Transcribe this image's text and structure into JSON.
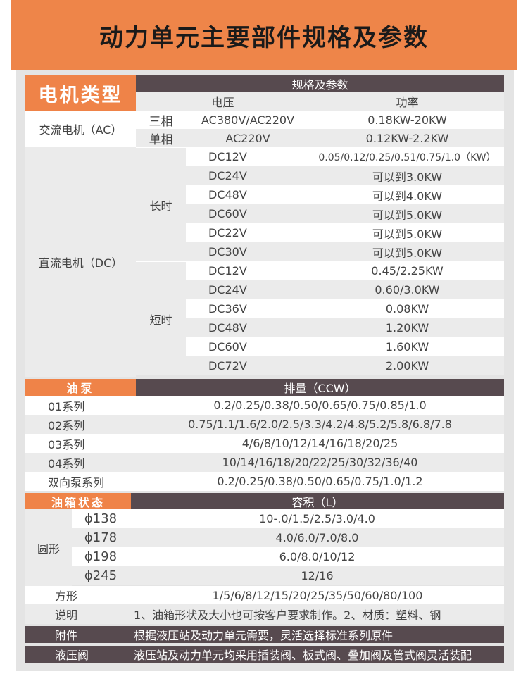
{
  "title": "动力单元主要部件规格及参数",
  "motor": {
    "header": "电机类型",
    "spec_header": "规格及参数",
    "col_voltage": "电压",
    "col_power": "功率",
    "ac_label": "交流电机（AC）",
    "ac_rows": [
      {
        "phase": "三相",
        "voltage": "AC380V/AC220V",
        "power": "0.18KW-20KW"
      },
      {
        "phase": "单相",
        "voltage": "AC220V",
        "power": "0.12KW-2.2KW"
      }
    ],
    "dc_label": "直流电机（DC）",
    "dc_groups": [
      {
        "label": "长时",
        "rows": [
          {
            "voltage": "DC12V",
            "power": "0.05/0.12/0.25/0.51/0.75/1.0（KW）"
          },
          {
            "voltage": "DC24V",
            "power": "可以到3.0KW"
          },
          {
            "voltage": "DC48V",
            "power": "可以到4.0KW"
          },
          {
            "voltage": "DC60V",
            "power": "可以到5.0KW"
          },
          {
            "voltage": "DC22V",
            "power": "可以到5.0KW"
          },
          {
            "voltage": "DC30V",
            "power": "可以到5.0KW"
          }
        ]
      },
      {
        "label": "短时",
        "rows": [
          {
            "voltage": "DC12V",
            "power": "0.45/2.25KW"
          },
          {
            "voltage": "DC24V",
            "power": "0.60/3.0KW"
          },
          {
            "voltage": "DC36V",
            "power": "0.08KW"
          },
          {
            "voltage": "DC48V",
            "power": "1.20KW"
          },
          {
            "voltage": "DC60V",
            "power": "1.60KW"
          },
          {
            "voltage": "DC72V",
            "power": "2.00KW"
          }
        ]
      }
    ]
  },
  "pump": {
    "header": "油泵",
    "value_header": "排量（CCW）",
    "rows": [
      {
        "series": "01系列",
        "values": "0.2/0.25/0.38/0.50/0.65/0.75/0.85/1.0"
      },
      {
        "series": "02系列",
        "values": "0.75/1.1/1.6/2.0/2.5/3.3/4.2/4.8/5.2/5.8/6.8/7.8"
      },
      {
        "series": "03系列",
        "values": "4/6/8/10/12/14/16/18/20/25"
      },
      {
        "series": "04系列",
        "values": "10/14/16/18/20/22/25/30/32/36/40"
      },
      {
        "series": "双向泵系列",
        "values": "0.2/0.25/0.38/0.50/0.65/0.75/1.0/1.2"
      }
    ]
  },
  "tank": {
    "header": "油箱状态",
    "value_header": "容积（L）",
    "round_label": "圆形",
    "round_rows": [
      {
        "size": "ϕ138",
        "values": "10-.0/1.5/2.5/3.0/4.0"
      },
      {
        "size": "ϕ178",
        "values": "4.0/6.0/7.0/8.0"
      },
      {
        "size": "ϕ198",
        "values": "6.0/8.0/10/12"
      },
      {
        "size": "ϕ245",
        "values": "12/16"
      }
    ],
    "square_label": "方形",
    "square_values": "1/5/6/8/12/15/20/25/35/50/60/80/100",
    "note_label": "说明",
    "note_text": "1、油箱形状及大小也可按客户要求制作。2、材质：塑料、钢"
  },
  "accessories": {
    "label": "附件",
    "text": "根据液压站及动力单元需要，灵活选择标准系列原件"
  },
  "valve": {
    "label": "液压阀",
    "text": "液压站及动力单元均采用插装阀、板式阀、叠加阀及管式阀灵活装配"
  }
}
